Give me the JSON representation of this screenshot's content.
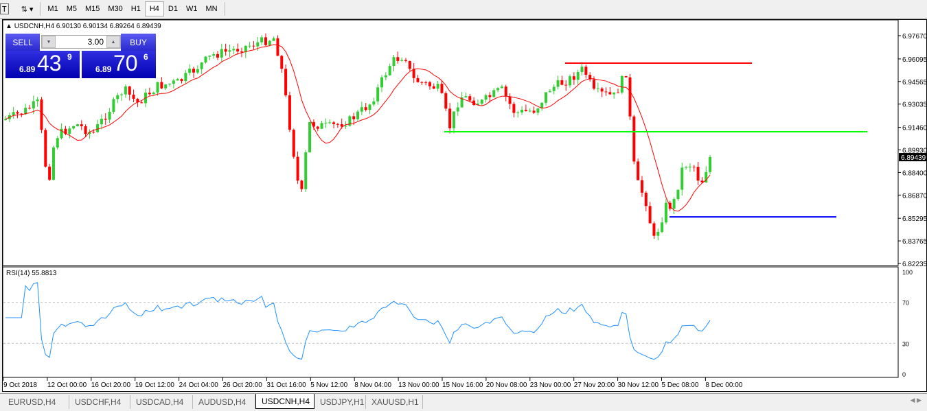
{
  "toolbar": {
    "timeframes": [
      "M1",
      "M5",
      "M15",
      "M30",
      "H1",
      "H4",
      "D1",
      "W1",
      "MN"
    ],
    "active": "H4"
  },
  "chart": {
    "title": "USDCNH,H4  6.90130 6.90134 6.89264 6.89439",
    "symbol": "USDCNH",
    "timeframe": "H4",
    "open": "6.90130",
    "high": "6.90134",
    "low": "6.89264",
    "close": "6.89439",
    "current_price": "6.89439",
    "price_ticks": [
      "6.97670",
      "6.96095",
      "6.94565",
      "6.93035",
      "6.91460",
      "6.89930",
      "6.88400",
      "6.86870",
      "6.85295",
      "6.83765",
      "6.82235"
    ],
    "time_ticks": [
      "9 Oct 2018",
      "12 Oct 00:00",
      "16 Oct 20:00",
      "19 Oct 12:00",
      "24 Oct 04:00",
      "26 Oct 20:00",
      "31 Oct 16:00",
      "5 Nov 12:00",
      "8 Nov 04:00",
      "13 Nov 00:00",
      "15 Nov 16:00",
      "20 Nov 08:00",
      "23 Nov 00:00",
      "27 Nov 20:00",
      "30 Nov 12:00",
      "5 Dec 08:00",
      "8 Dec 00:00"
    ],
    "levels": [
      {
        "price": 6.9581,
        "color": "#ff0000"
      },
      {
        "price": 6.9116,
        "color": "#00ff00"
      },
      {
        "price": 6.8539,
        "color": "#0000ff"
      }
    ],
    "colors": {
      "bull": "#32cd32",
      "bear": "#ff0000",
      "ma": "#ff0000",
      "rsi": "#1e90ff"
    }
  },
  "trade": {
    "sell_label": "SELL",
    "buy_label": "BUY",
    "lot": "3.00",
    "sell": {
      "prefix": "6.89",
      "big": "43",
      "pip": "9"
    },
    "buy": {
      "prefix": "6.89",
      "big": "70",
      "pip": "6"
    }
  },
  "rsi": {
    "label": "RSI(14) 55.8813",
    "ticks": [
      "100",
      "70",
      "30",
      "0"
    ]
  },
  "tabs": [
    {
      "label": "EURUSD,H4"
    },
    {
      "label": "USDCHF,H4"
    },
    {
      "label": "USDCAD,H4"
    },
    {
      "label": "AUDUSD,H4"
    },
    {
      "label": "USDCNH,H4",
      "active": true
    },
    {
      "label": "USDJPY,H1"
    },
    {
      "label": "XAUUSD,H1"
    }
  ]
}
